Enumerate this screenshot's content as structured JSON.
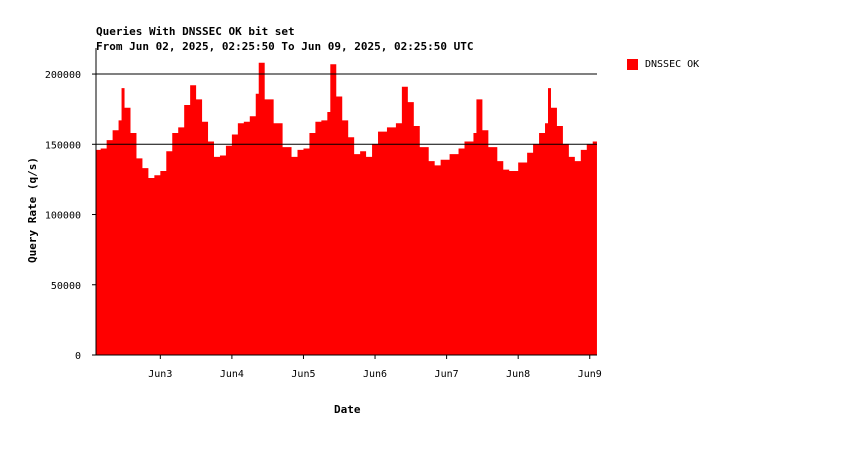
{
  "chart_data": {
    "type": "area",
    "title": "Queries With DNSSEC OK bit set",
    "subtitle": "From Jun 02, 2025, 02:25:50 To Jun 09, 2025, 02:25:50 UTC",
    "xlabel": "Date",
    "ylabel": "Query Rate (q/s)",
    "x_range": [
      "2025-06-02 02:25:50",
      "2025-06-09 02:25:50"
    ],
    "ylim": [
      0,
      210000
    ],
    "y_ticks": [
      0,
      50000,
      100000,
      150000,
      200000
    ],
    "y_tick_labels": [
      "0",
      "50000",
      "100000",
      "150000",
      "200000"
    ],
    "y_gridlines": [
      150000,
      200000
    ],
    "x_ticks": [
      {
        "date": "2025-06-03",
        "label": "Jun3"
      },
      {
        "date": "2025-06-04",
        "label": "Jun4"
      },
      {
        "date": "2025-06-05",
        "label": "Jun5"
      },
      {
        "date": "2025-06-06",
        "label": "Jun6"
      },
      {
        "date": "2025-06-07",
        "label": "Jun7"
      },
      {
        "date": "2025-06-08",
        "label": "Jun8"
      },
      {
        "date": "2025-06-09",
        "label": "Jun9"
      }
    ],
    "legend_position": "right",
    "series": [
      {
        "name": "DNSSEC OK",
        "color": "#ff0000",
        "points": [
          [
            "2025-06-02 02:25",
            146000
          ],
          [
            "2025-06-02 04:00",
            147000
          ],
          [
            "2025-06-02 06:00",
            153000
          ],
          [
            "2025-06-02 08:00",
            160000
          ],
          [
            "2025-06-02 10:00",
            167000
          ],
          [
            "2025-06-02 11:00",
            190000
          ],
          [
            "2025-06-02 12:00",
            176000
          ],
          [
            "2025-06-02 14:00",
            158000
          ],
          [
            "2025-06-02 16:00",
            140000
          ],
          [
            "2025-06-02 18:00",
            133000
          ],
          [
            "2025-06-02 20:00",
            126000
          ],
          [
            "2025-06-02 22:00",
            128000
          ],
          [
            "2025-06-03 00:00",
            131000
          ],
          [
            "2025-06-03 02:00",
            145000
          ],
          [
            "2025-06-03 04:00",
            158000
          ],
          [
            "2025-06-03 06:00",
            162000
          ],
          [
            "2025-06-03 08:00",
            178000
          ],
          [
            "2025-06-03 10:00",
            192000
          ],
          [
            "2025-06-03 12:00",
            182000
          ],
          [
            "2025-06-03 14:00",
            166000
          ],
          [
            "2025-06-03 16:00",
            152000
          ],
          [
            "2025-06-03 18:00",
            141000
          ],
          [
            "2025-06-03 20:00",
            142000
          ],
          [
            "2025-06-03 22:00",
            149000
          ],
          [
            "2025-06-04 00:00",
            157000
          ],
          [
            "2025-06-04 02:00",
            165000
          ],
          [
            "2025-06-04 04:00",
            166000
          ],
          [
            "2025-06-04 06:00",
            170000
          ],
          [
            "2025-06-04 08:00",
            186000
          ],
          [
            "2025-06-04 09:00",
            208000
          ],
          [
            "2025-06-04 11:00",
            182000
          ],
          [
            "2025-06-04 14:00",
            165000
          ],
          [
            "2025-06-04 17:00",
            148000
          ],
          [
            "2025-06-04 20:00",
            141000
          ],
          [
            "2025-06-04 22:00",
            146000
          ],
          [
            "2025-06-05 00:00",
            147000
          ],
          [
            "2025-06-05 02:00",
            158000
          ],
          [
            "2025-06-05 04:00",
            166000
          ],
          [
            "2025-06-05 06:00",
            167000
          ],
          [
            "2025-06-05 08:00",
            173000
          ],
          [
            "2025-06-05 09:00",
            207000
          ],
          [
            "2025-06-05 11:00",
            184000
          ],
          [
            "2025-06-05 13:00",
            167000
          ],
          [
            "2025-06-05 15:00",
            155000
          ],
          [
            "2025-06-05 17:00",
            143000
          ],
          [
            "2025-06-05 19:00",
            145000
          ],
          [
            "2025-06-05 21:00",
            141000
          ],
          [
            "2025-06-05 23:00",
            150000
          ],
          [
            "2025-06-06 01:00",
            159000
          ],
          [
            "2025-06-06 04:00",
            162000
          ],
          [
            "2025-06-06 07:00",
            165000
          ],
          [
            "2025-06-06 09:00",
            191000
          ],
          [
            "2025-06-06 11:00",
            180000
          ],
          [
            "2025-06-06 13:00",
            163000
          ],
          [
            "2025-06-06 15:00",
            148000
          ],
          [
            "2025-06-06 18:00",
            138000
          ],
          [
            "2025-06-06 20:00",
            135000
          ],
          [
            "2025-06-06 22:00",
            139000
          ],
          [
            "2025-06-07 01:00",
            143000
          ],
          [
            "2025-06-07 04:00",
            147000
          ],
          [
            "2025-06-07 06:00",
            152000
          ],
          [
            "2025-06-07 09:00",
            158000
          ],
          [
            "2025-06-07 10:00",
            182000
          ],
          [
            "2025-06-07 12:00",
            160000
          ],
          [
            "2025-06-07 14:00",
            148000
          ],
          [
            "2025-06-07 17:00",
            138000
          ],
          [
            "2025-06-07 19:00",
            132000
          ],
          [
            "2025-06-07 21:00",
            131000
          ],
          [
            "2025-06-08 00:00",
            137000
          ],
          [
            "2025-06-08 03:00",
            144000
          ],
          [
            "2025-06-08 05:00",
            150000
          ],
          [
            "2025-06-08 07:00",
            158000
          ],
          [
            "2025-06-08 09:00",
            165000
          ],
          [
            "2025-06-08 10:00",
            190000
          ],
          [
            "2025-06-08 11:00",
            176000
          ],
          [
            "2025-06-08 13:00",
            163000
          ],
          [
            "2025-06-08 15:00",
            150000
          ],
          [
            "2025-06-08 17:00",
            141000
          ],
          [
            "2025-06-08 19:00",
            138000
          ],
          [
            "2025-06-08 21:00",
            146000
          ],
          [
            "2025-06-08 23:00",
            150000
          ],
          [
            "2025-06-09 01:00",
            152000
          ],
          [
            "2025-06-09 02:25",
            150000
          ]
        ]
      }
    ]
  }
}
